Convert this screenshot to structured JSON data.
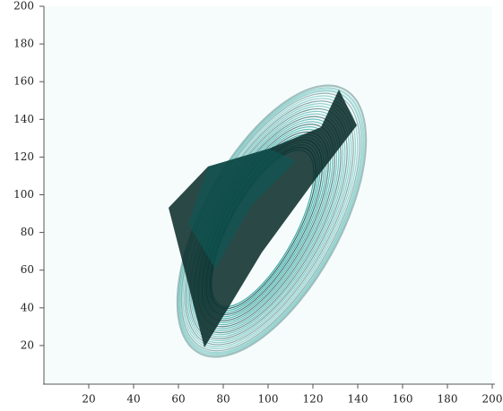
{
  "chart_data": {
    "type": "image",
    "xlim": [
      0,
      200
    ],
    "xticks": [
      20,
      40,
      60,
      80,
      100,
      120,
      140,
      160,
      180,
      200
    ],
    "ylim": [
      0,
      200
    ],
    "yticks": [
      20,
      40,
      60,
      80,
      100,
      120,
      140,
      160,
      180,
      200
    ]
  }
}
